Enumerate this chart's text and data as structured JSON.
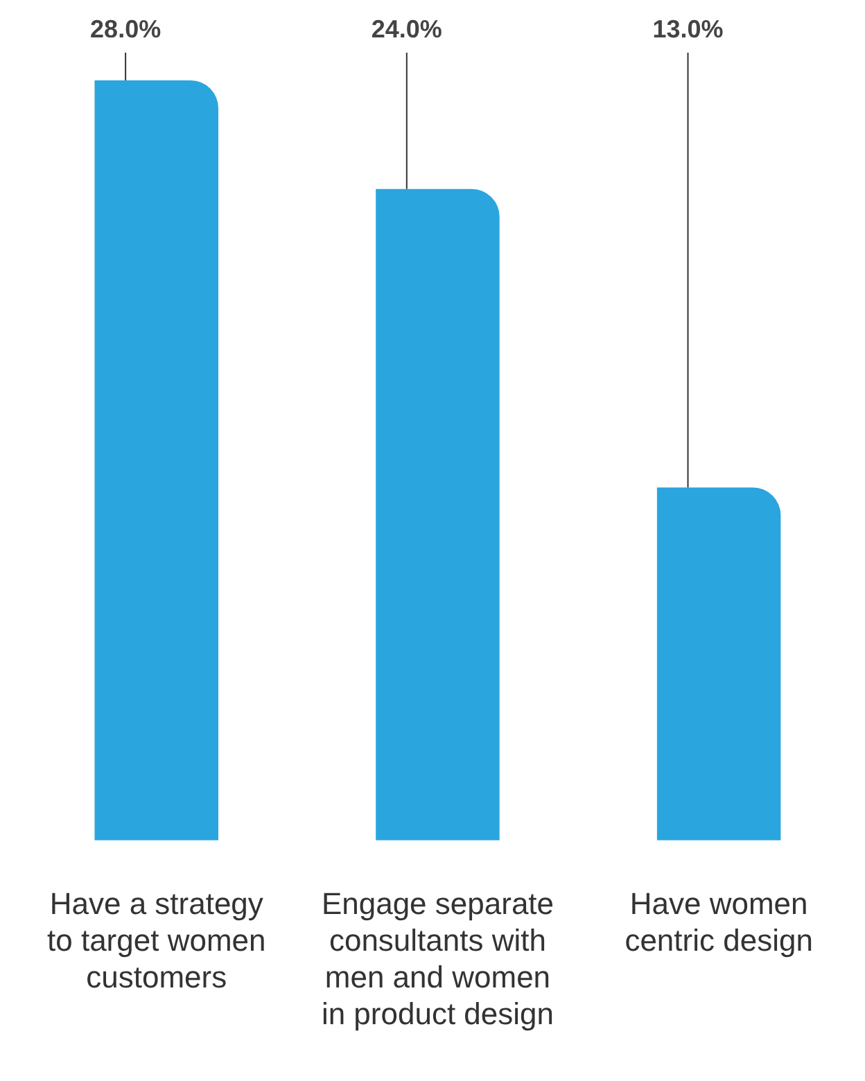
{
  "chart_data": {
    "type": "bar",
    "categories": [
      "Have a strategy to target women customers",
      "Engage separate consultants with men and women in product design",
      "Have women centric design"
    ],
    "values": [
      28.0,
      24.0,
      13.0
    ],
    "value_labels": [
      "28.0%",
      "24.0%",
      "13.0%"
    ],
    "color": "#2aa5de",
    "ylim": [
      0,
      28
    ],
    "legend": false
  }
}
